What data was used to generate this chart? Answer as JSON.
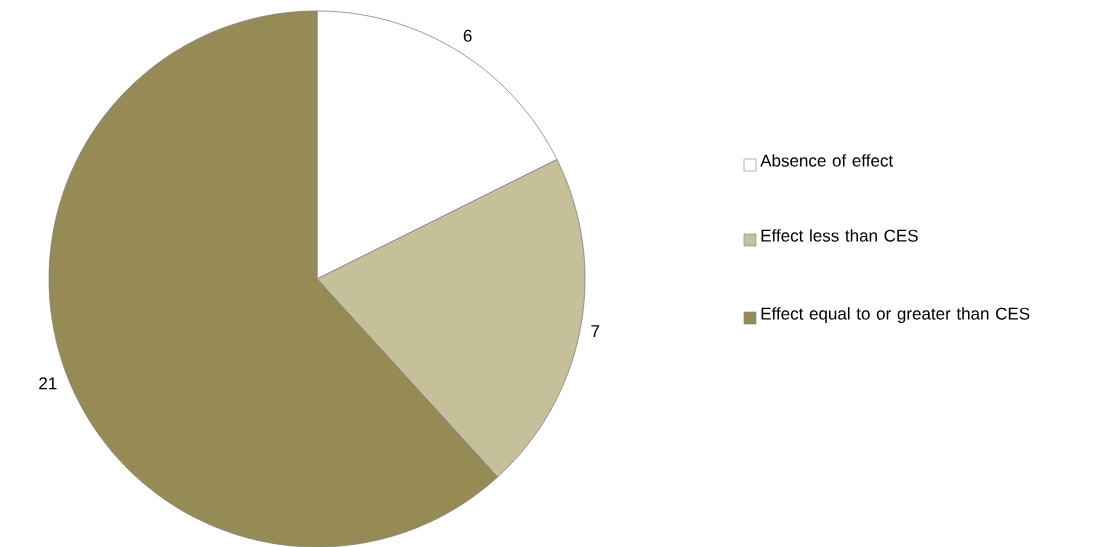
{
  "chart_data": {
    "type": "pie",
    "categories": [
      "Absence of effect",
      "Effect less than CES",
      "Effect equal to or greater than CES"
    ],
    "values": [
      6,
      7,
      21
    ],
    "colors": [
      "#ffffff",
      "#c5bf9a",
      "#978b55"
    ],
    "data_labels": true,
    "legend": "right"
  }
}
